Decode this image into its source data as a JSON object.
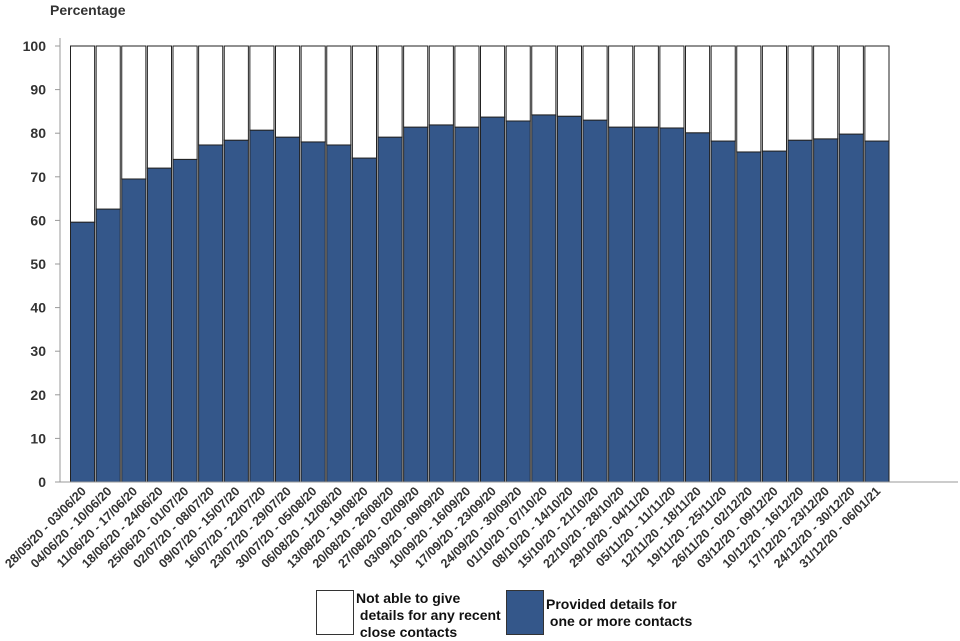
{
  "chart_data": {
    "type": "bar",
    "stacked": true,
    "ylabel": "Percentage",
    "ylim": [
      0,
      100
    ],
    "yticks": [
      0,
      10,
      20,
      30,
      40,
      50,
      60,
      70,
      80,
      90,
      100
    ],
    "grid": false,
    "legend_placement": "bottom",
    "categories": [
      "28/05/20 - 03/06/20",
      "04/06/20 - 10/06/20",
      "11/06/20 - 17/06/20",
      "18/06/20 - 24/06/20",
      "25/06/20 - 01/07/20",
      "02/07/20 - 08/07/20",
      "09/07/20 - 15/07/20",
      "16/07/20 - 22/07/20",
      "23/07/20 - 29/07/20",
      "30/07/20 - 05/08/20",
      "06/08/20 - 12/08/20",
      "13/08/20 - 19/08/20",
      "20/08/20 - 26/08/20",
      "27/08/20 - 02/09/20",
      "03/09/20 - 09/09/20",
      "10/09/20 - 16/09/20",
      "17/09/20 - 23/09/20",
      "24/09/20 - 30/09/20",
      "01/10/20 - 07/10/20",
      "08/10/20 - 14/10/20",
      "15/10/20 - 21/10/20",
      "22/10/20 - 28/10/20",
      "29/10/20 - 04/11/20",
      "05/11/20 - 11/11/20",
      "12/11/20 - 18/11/20",
      "19/11/20 - 25/11/20",
      "26/11/20 - 02/12/20",
      "03/12/20 - 09/12/20",
      "10/12/20 - 16/12/20",
      "17/12/20 - 23/12/20",
      "24/12/20 - 30/12/20",
      "31/12/20 - 06/01/21"
    ],
    "series": [
      {
        "name": "Provided details for\n one or more contacts",
        "color": "#34578a",
        "values": [
          59.6,
          62.6,
          69.5,
          72.0,
          74.0,
          77.3,
          78.4,
          80.7,
          79.1,
          78.0,
          77.3,
          74.3,
          79.1,
          81.4,
          81.9,
          81.4,
          83.7,
          82.8,
          84.2,
          83.9,
          83.0,
          81.4,
          81.4,
          81.2,
          80.1,
          78.2,
          75.7,
          75.9,
          78.4,
          78.7,
          79.8,
          78.2
        ]
      },
      {
        "name": "Not able to give\n details for any recent\n close contacts",
        "color": "#ffffff",
        "values": [
          40.4,
          37.4,
          30.5,
          28.0,
          26.0,
          22.7,
          21.6,
          19.3,
          20.9,
          22.0,
          22.7,
          25.7,
          20.9,
          18.6,
          18.1,
          18.6,
          16.3,
          17.2,
          15.8,
          16.1,
          17.0,
          18.6,
          18.6,
          18.8,
          19.9,
          21.8,
          24.3,
          24.1,
          21.6,
          21.3,
          20.2,
          21.8
        ]
      }
    ]
  }
}
